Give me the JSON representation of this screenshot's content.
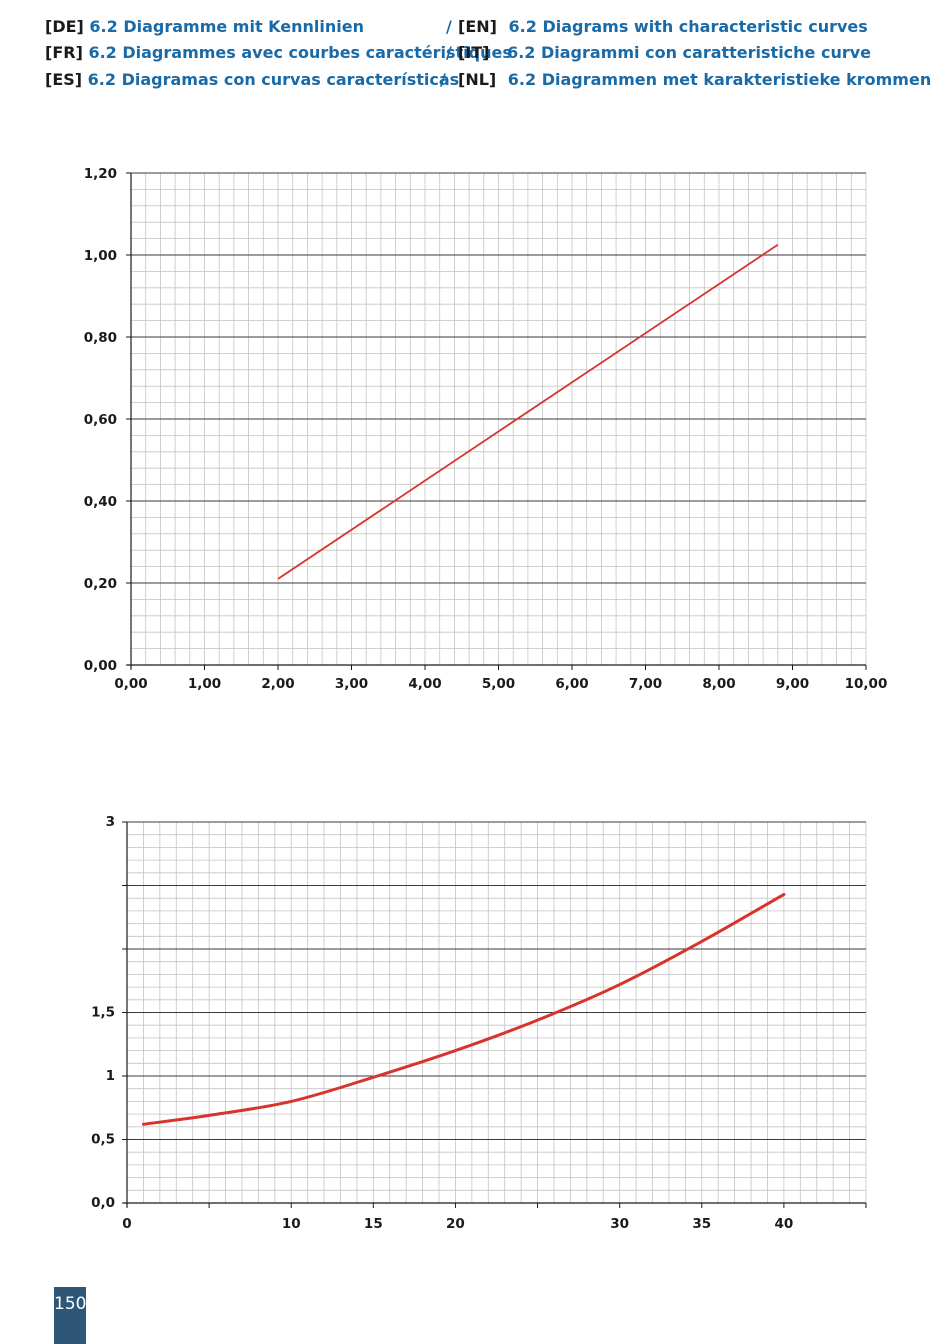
{
  "headings": [
    {
      "code": "[DE]",
      "title": "6.2 Diagramme mit Kennlinien"
    },
    {
      "code": "[EN]",
      "title": "6.2 Diagrams with characteristic curves"
    },
    {
      "code": "[FR]",
      "title": "6.2 Diagrammes avec courbes caractéristiques"
    },
    {
      "code": "[IT]",
      "title": "6.2 Diagrammi con caratteristiche curve"
    },
    {
      "code": "[ES]",
      "title": "6.2 Diagramas con curvas características"
    },
    {
      "code": "[NL]",
      "title": "6.2 Diagrammen met karakteristieke krommen"
    }
  ],
  "separator": "/",
  "page_number": "150",
  "chart_data": [
    {
      "type": "line",
      "title": "",
      "xlabel": "",
      "ylabel": "",
      "xlim": [
        0,
        10
      ],
      "ylim": [
        0,
        1.2
      ],
      "x_ticks": [
        "0,00",
        "1,00",
        "2,00",
        "3,00",
        "4,00",
        "5,00",
        "6,00",
        "7,00",
        "8,00",
        "9,00",
        "10,00"
      ],
      "y_ticks": [
        "0,00",
        "0,20",
        "0,40",
        "0,60",
        "0,80",
        "1,00",
        "1,20"
      ],
      "grid": true,
      "line_color": "#d7352b",
      "series": [
        {
          "x": [
            2.0,
            8.8
          ],
          "y": [
            0.21,
            1.025
          ]
        }
      ]
    },
    {
      "type": "line",
      "title": "",
      "xlabel": "",
      "ylabel": "",
      "xlim": [
        0,
        45
      ],
      "ylim": [
        0,
        3
      ],
      "x_ticks": [
        {
          "v": 0,
          "label": "0"
        },
        {
          "v": 5,
          "label": ""
        },
        {
          "v": 10,
          "label": "10"
        },
        {
          "v": 15,
          "label": "15"
        },
        {
          "v": 20,
          "label": "20"
        },
        {
          "v": 25,
          "label": ""
        },
        {
          "v": 30,
          "label": "30"
        },
        {
          "v": 35,
          "label": "35"
        },
        {
          "v": 40,
          "label": "40"
        },
        {
          "v": 45,
          "label": ""
        }
      ],
      "y_ticks": [
        {
          "v": 0,
          "label": "0,0"
        },
        {
          "v": 0.5,
          "label": "0,5"
        },
        {
          "v": 1,
          "label": "1"
        },
        {
          "v": 1.5,
          "label": "1,5"
        },
        {
          "v": 2,
          "label": ""
        },
        {
          "v": 2.5,
          "label": ""
        },
        {
          "v": 3,
          "label": "3"
        }
      ],
      "grid": true,
      "line_color": "#d7352b",
      "series": [
        {
          "x": [
            1,
            5,
            10,
            15,
            20,
            25,
            30,
            35,
            40
          ],
          "y": [
            0.62,
            0.69,
            0.8,
            0.99,
            1.2,
            1.44,
            1.72,
            2.06,
            2.43
          ]
        }
      ]
    }
  ]
}
